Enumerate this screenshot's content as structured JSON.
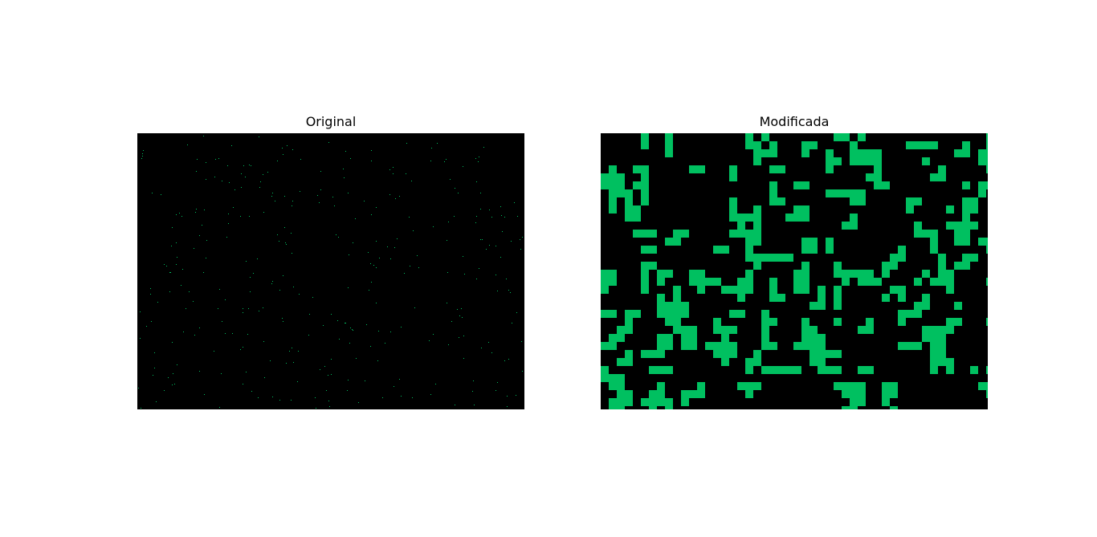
{
  "figure": {
    "left_panel": {
      "title": "Original"
    },
    "right_panel": {
      "title": "Modificada"
    }
  },
  "colors": {
    "background": "#000000",
    "foreground": "#00c060",
    "page": "#ffffff"
  }
}
